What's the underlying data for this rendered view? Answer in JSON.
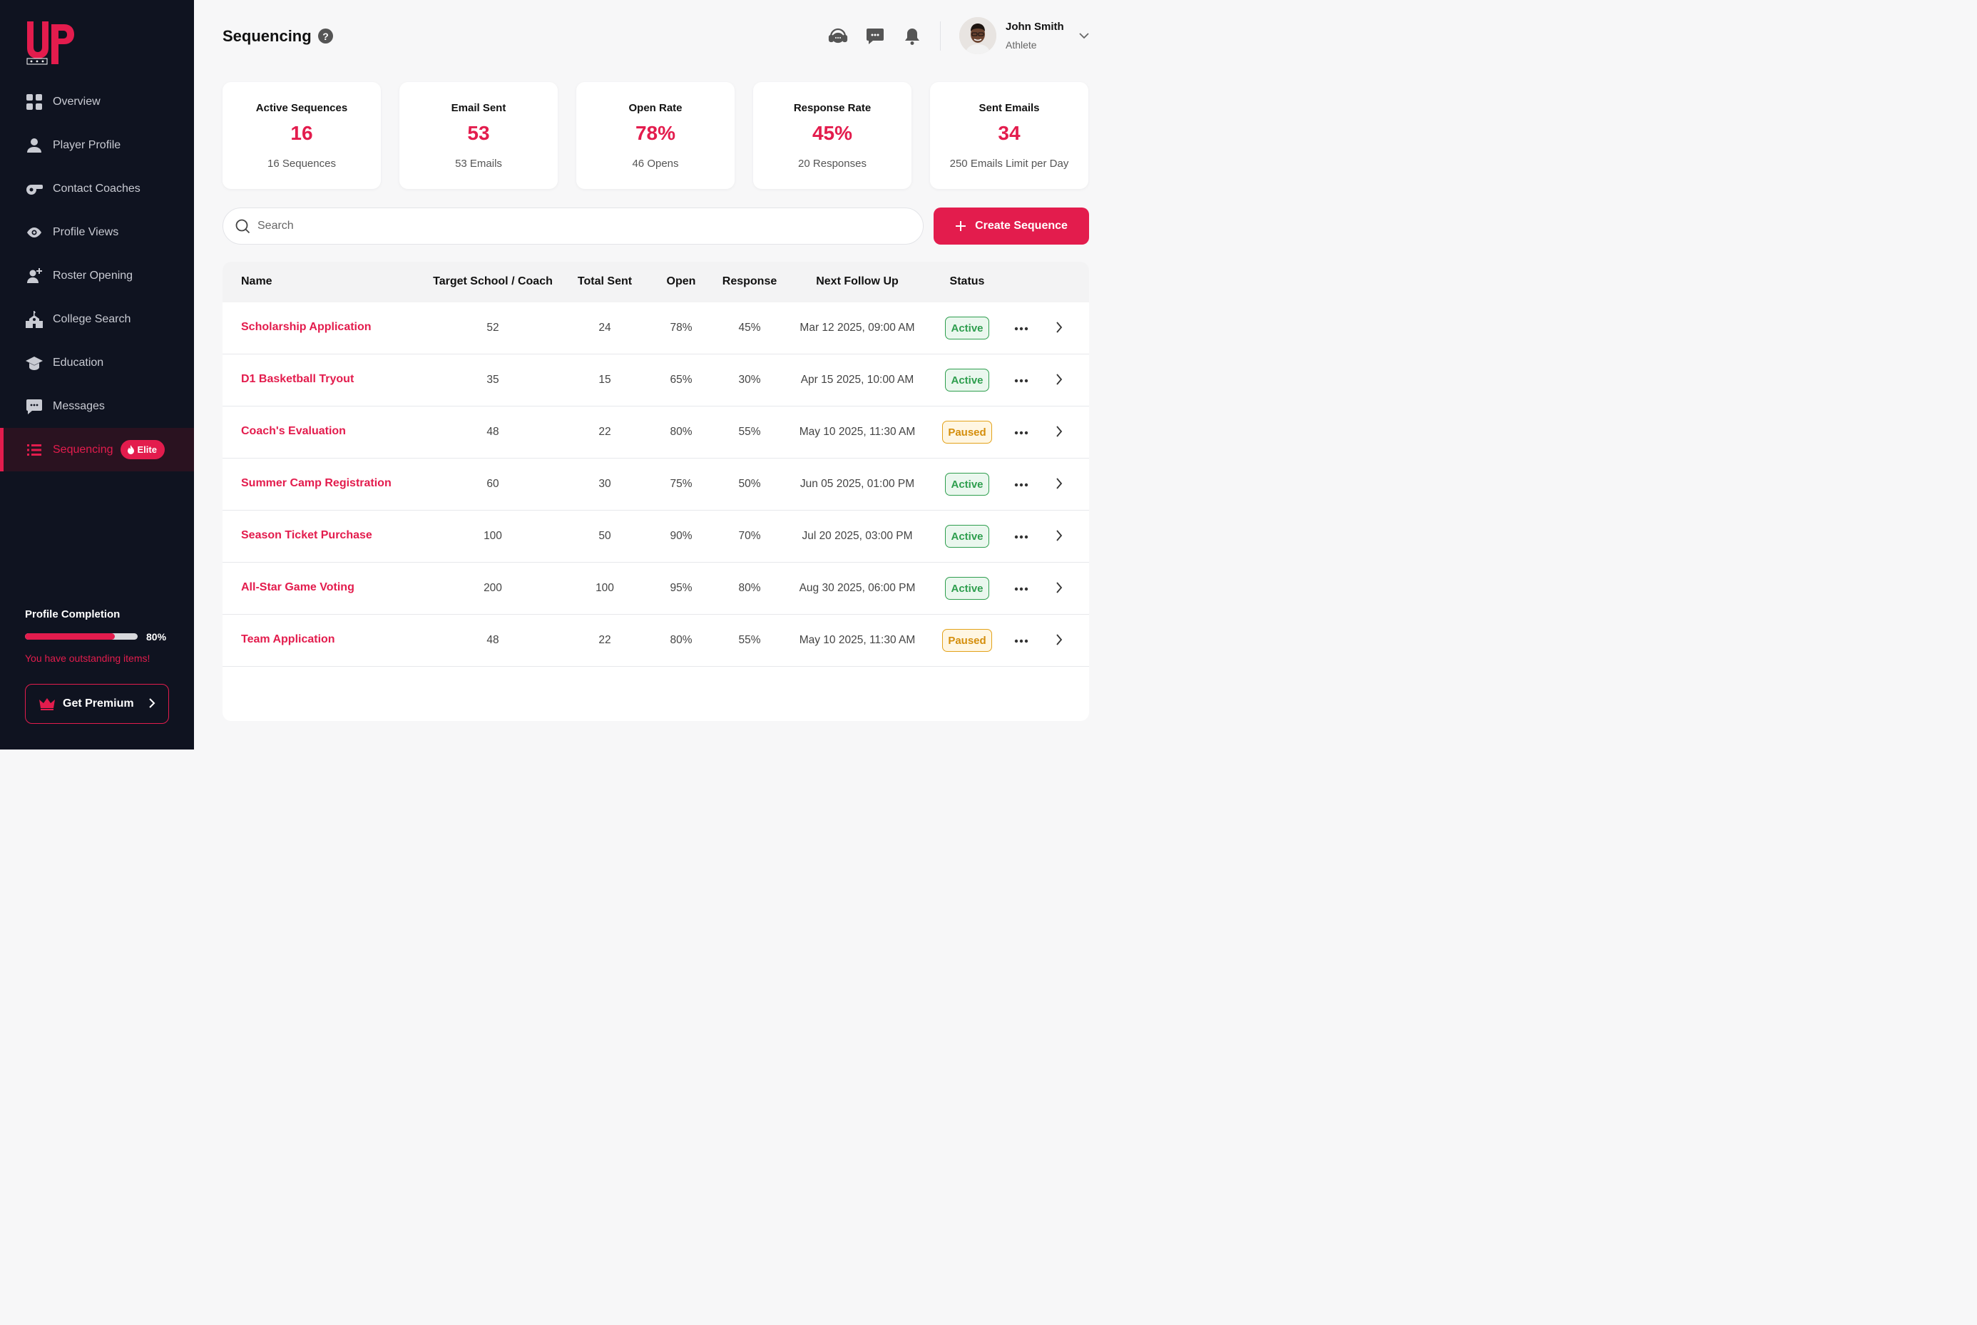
{
  "sidebar": {
    "logo_text": "UP",
    "items": [
      {
        "label": "Overview",
        "icon": "grid-icon"
      },
      {
        "label": "Player Profile",
        "icon": "user-icon"
      },
      {
        "label": "Contact Coaches",
        "icon": "whistle-icon"
      },
      {
        "label": "Profile Views",
        "icon": "eye-icon"
      },
      {
        "label": "Roster Opening",
        "icon": "user-plus-icon"
      },
      {
        "label": "College Search",
        "icon": "school-icon"
      },
      {
        "label": "Education",
        "icon": "graduation-cap-icon"
      },
      {
        "label": "Messages",
        "icon": "chat-icon"
      },
      {
        "label": "Sequencing",
        "icon": "list-icon",
        "active": true,
        "badge": "Elite"
      }
    ],
    "profile_completion": {
      "title": "Profile Completion",
      "percent": 80,
      "percent_label": "80%",
      "warning": "You have outstanding items!"
    },
    "premium_button": "Get Premium"
  },
  "header": {
    "title": "Sequencing",
    "help": "?",
    "user": {
      "name": "John Smith",
      "role": "Athlete"
    }
  },
  "stats": [
    {
      "label": "Active Sequences",
      "value": "16",
      "sub": "16 Sequences"
    },
    {
      "label": "Email Sent",
      "value": "53",
      "sub": "53 Emails"
    },
    {
      "label": "Open Rate",
      "value": "78%",
      "sub": "46 Opens"
    },
    {
      "label": "Response Rate",
      "value": "45%",
      "sub": "20 Responses"
    },
    {
      "label": "Sent Emails",
      "value": "34",
      "sub": "250 Emails Limit per Day"
    }
  ],
  "search": {
    "placeholder": "Search",
    "value": ""
  },
  "create_button": "Create Sequence",
  "table": {
    "columns": [
      "Name",
      "Target School / Coach",
      "Total Sent",
      "Open",
      "Response",
      "Next Follow Up",
      "Status"
    ],
    "rows": [
      {
        "name": "Scholarship Application",
        "target": "52",
        "sent": "24",
        "open": "78%",
        "response": "45%",
        "next": "Mar 12 2025, 09:00 AM",
        "status": "Active"
      },
      {
        "name": "D1 Basketball Tryout",
        "target": "35",
        "sent": "15",
        "open": "65%",
        "response": "30%",
        "next": "Apr 15 2025, 10:00 AM",
        "status": "Active"
      },
      {
        "name": "Coach's Evaluation",
        "target": "48",
        "sent": "22",
        "open": "80%",
        "response": "55%",
        "next": "May 10 2025, 11:30 AM",
        "status": "Paused"
      },
      {
        "name": "Summer Camp Registration",
        "target": "60",
        "sent": "30",
        "open": "75%",
        "response": "50%",
        "next": "Jun 05 2025, 01:00 PM",
        "status": "Active"
      },
      {
        "name": "Season Ticket Purchase",
        "target": "100",
        "sent": "50",
        "open": "90%",
        "response": "70%",
        "next": "Jul 20 2025, 03:00 PM",
        "status": "Active"
      },
      {
        "name": "All-Star Game Voting",
        "target": "200",
        "sent": "100",
        "open": "95%",
        "response": "80%",
        "next": "Aug 30 2025, 06:00 PM",
        "status": "Active"
      },
      {
        "name": "Team Application",
        "target": "48",
        "sent": "22",
        "open": "80%",
        "response": "55%",
        "next": "May 10 2025, 11:30 AM",
        "status": "Paused"
      }
    ]
  },
  "colors": {
    "accent": "#E31C4D",
    "sidebar": "#0F1320",
    "active_status": "#2E9E4E",
    "paused_status": "#E3A21A"
  }
}
